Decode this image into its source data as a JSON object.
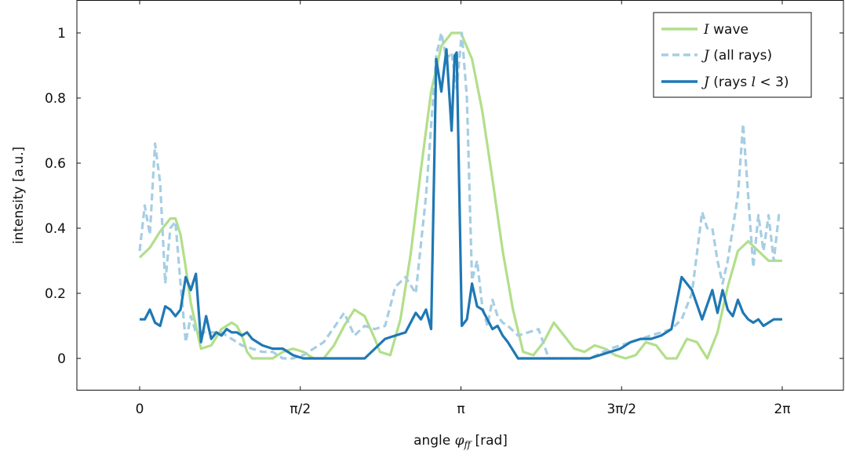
{
  "chart_data": {
    "type": "line",
    "xlabel": "angle φ_ff [rad]",
    "xlabel_parts": {
      "pre": "angle ",
      "sym": "φ",
      "sub": "ff",
      "post": " [rad]"
    },
    "ylabel": "intensity [a.u.]",
    "xlim": [
      -0.5,
      6.8
    ],
    "ylim": [
      -0.1,
      1.1
    ],
    "x_ticks": [
      {
        "value": 0,
        "label": "0"
      },
      {
        "value": 1.5708,
        "label": "π/2"
      },
      {
        "value": 3.1416,
        "label": "π"
      },
      {
        "value": 4.7124,
        "label": "3π/2"
      },
      {
        "value": 6.2832,
        "label": "2π"
      }
    ],
    "y_ticks": [
      {
        "value": 0,
        "label": "0"
      },
      {
        "value": 0.2,
        "label": "0.2"
      },
      {
        "value": 0.4,
        "label": "0.4"
      },
      {
        "value": 0.6,
        "label": "0.6"
      },
      {
        "value": 0.8,
        "label": "0.8"
      },
      {
        "value": 1,
        "label": "1"
      }
    ],
    "grid": false,
    "legend_position": "top-right",
    "legend": [
      {
        "italic": "I",
        "text": " wave"
      },
      {
        "italic": "J",
        "text": " (all rays)"
      },
      {
        "italic": "J",
        "text": " (rays ",
        "italic2": "l",
        "text2": " < 3)"
      }
    ],
    "series": [
      {
        "color": "#b2df8a",
        "style": "solid",
        "x": [
          0,
          0.1,
          0.2,
          0.3,
          0.35,
          0.4,
          0.45,
          0.5,
          0.6,
          0.7,
          0.8,
          0.9,
          0.95,
          1.0,
          1.05,
          1.1,
          1.2,
          1.3,
          1.4,
          1.5,
          1.6,
          1.7,
          1.8,
          1.9,
          2.0,
          2.1,
          2.2,
          2.3,
          2.35,
          2.45,
          2.55,
          2.65,
          2.75,
          2.85,
          2.95,
          3.05,
          3.1416,
          3.25,
          3.35,
          3.45,
          3.55,
          3.65,
          3.75,
          3.85,
          3.95,
          4.05,
          4.15,
          4.25,
          4.35,
          4.45,
          4.55,
          4.65,
          4.75,
          4.85,
          4.95,
          5.05,
          5.15,
          5.25,
          5.35,
          5.45,
          5.55,
          5.65,
          5.75,
          5.85,
          5.95,
          6.05,
          6.15,
          6.2832
        ],
        "y": [
          0.31,
          0.34,
          0.39,
          0.43,
          0.43,
          0.38,
          0.28,
          0.17,
          0.03,
          0.04,
          0.09,
          0.11,
          0.1,
          0.07,
          0.02,
          0.0,
          0.0,
          0.0,
          0.02,
          0.03,
          0.02,
          0.0,
          0.0,
          0.04,
          0.1,
          0.15,
          0.13,
          0.06,
          0.02,
          0.01,
          0.12,
          0.32,
          0.58,
          0.82,
          0.96,
          1.0,
          1.0,
          0.92,
          0.76,
          0.55,
          0.33,
          0.15,
          0.02,
          0.01,
          0.05,
          0.11,
          0.07,
          0.03,
          0.02,
          0.04,
          0.03,
          0.01,
          0.0,
          0.01,
          0.05,
          0.04,
          0.0,
          0.0,
          0.06,
          0.05,
          0.0,
          0.08,
          0.22,
          0.33,
          0.36,
          0.33,
          0.3,
          0.3
        ]
      },
      {
        "color": "#a6cee3",
        "style": "dashed",
        "x": [
          0,
          0.05,
          0.1,
          0.15,
          0.2,
          0.25,
          0.3,
          0.35,
          0.4,
          0.45,
          0.5,
          0.55,
          0.6,
          0.7,
          0.8,
          0.9,
          1.0,
          1.1,
          1.2,
          1.3,
          1.4,
          1.5,
          1.6,
          1.8,
          2.0,
          2.1,
          2.2,
          2.3,
          2.4,
          2.5,
          2.6,
          2.7,
          2.8,
          2.9,
          2.95,
          3.0,
          3.05,
          3.1,
          3.15,
          3.2,
          3.25,
          3.3,
          3.35,
          3.4,
          3.45,
          3.5,
          3.55,
          3.6,
          3.7,
          3.8,
          3.9,
          4.0,
          4.1,
          4.2,
          4.3,
          4.4,
          4.6,
          4.8,
          5.0,
          5.1,
          5.2,
          5.3,
          5.4,
          5.5,
          5.55,
          5.6,
          5.65,
          5.7,
          5.75,
          5.8,
          5.85,
          5.9,
          5.95,
          6.0,
          6.05,
          6.1,
          6.15,
          6.2,
          6.25,
          6.2832
        ],
        "y": [
          0.33,
          0.47,
          0.38,
          0.66,
          0.54,
          0.23,
          0.4,
          0.42,
          0.23,
          0.05,
          0.13,
          0.08,
          0.08,
          0.08,
          0.08,
          0.06,
          0.04,
          0.03,
          0.02,
          0.02,
          0.0,
          0.0,
          0.01,
          0.05,
          0.14,
          0.07,
          0.1,
          0.09,
          0.1,
          0.22,
          0.25,
          0.2,
          0.5,
          0.93,
          1.0,
          0.92,
          0.94,
          0.83,
          1.0,
          0.8,
          0.24,
          0.3,
          0.16,
          0.1,
          0.18,
          0.13,
          0.11,
          0.1,
          0.07,
          0.08,
          0.09,
          0.0,
          0.0,
          0.0,
          0.0,
          0.0,
          0.03,
          0.05,
          0.07,
          0.08,
          0.09,
          0.12,
          0.2,
          0.45,
          0.4,
          0.4,
          0.3,
          0.23,
          0.3,
          0.4,
          0.5,
          0.72,
          0.5,
          0.28,
          0.44,
          0.33,
          0.44,
          0.3,
          0.44,
          0.44
        ]
      },
      {
        "color": "#1f78b4",
        "style": "solid",
        "x": [
          0,
          0.05,
          0.1,
          0.15,
          0.2,
          0.25,
          0.3,
          0.35,
          0.4,
          0.45,
          0.5,
          0.55,
          0.6,
          0.65,
          0.7,
          0.75,
          0.8,
          0.85,
          0.9,
          0.95,
          1.0,
          1.05,
          1.1,
          1.2,
          1.3,
          1.4,
          1.5,
          1.6,
          1.8,
          2.0,
          2.2,
          2.3,
          2.4,
          2.5,
          2.6,
          2.7,
          2.75,
          2.8,
          2.85,
          2.9,
          2.95,
          3.0,
          3.05,
          3.08,
          3.1,
          3.15,
          3.2,
          3.25,
          3.3,
          3.35,
          3.4,
          3.45,
          3.5,
          3.55,
          3.6,
          3.7,
          3.8,
          3.9,
          4.0,
          4.2,
          4.4,
          4.6,
          4.7,
          4.8,
          4.9,
          5.0,
          5.1,
          5.2,
          5.3,
          5.4,
          5.5,
          5.6,
          5.65,
          5.7,
          5.75,
          5.8,
          5.85,
          5.9,
          5.95,
          6.0,
          6.05,
          6.1,
          6.15,
          6.2,
          6.2832
        ],
        "y": [
          0.12,
          0.12,
          0.15,
          0.11,
          0.1,
          0.16,
          0.15,
          0.13,
          0.15,
          0.25,
          0.21,
          0.26,
          0.05,
          0.13,
          0.06,
          0.08,
          0.07,
          0.09,
          0.08,
          0.08,
          0.07,
          0.08,
          0.06,
          0.04,
          0.03,
          0.03,
          0.01,
          0.0,
          0.0,
          0.0,
          0.0,
          0.03,
          0.06,
          0.07,
          0.08,
          0.14,
          0.12,
          0.15,
          0.09,
          0.92,
          0.82,
          0.95,
          0.7,
          0.93,
          0.94,
          0.1,
          0.12,
          0.23,
          0.16,
          0.15,
          0.12,
          0.09,
          0.1,
          0.07,
          0.05,
          0.0,
          0.0,
          0.0,
          0.0,
          0.0,
          0.0,
          0.02,
          0.03,
          0.05,
          0.06,
          0.06,
          0.07,
          0.09,
          0.25,
          0.21,
          0.12,
          0.21,
          0.14,
          0.21,
          0.15,
          0.13,
          0.18,
          0.14,
          0.12,
          0.11,
          0.12,
          0.1,
          0.11,
          0.12,
          0.12
        ]
      }
    ]
  }
}
